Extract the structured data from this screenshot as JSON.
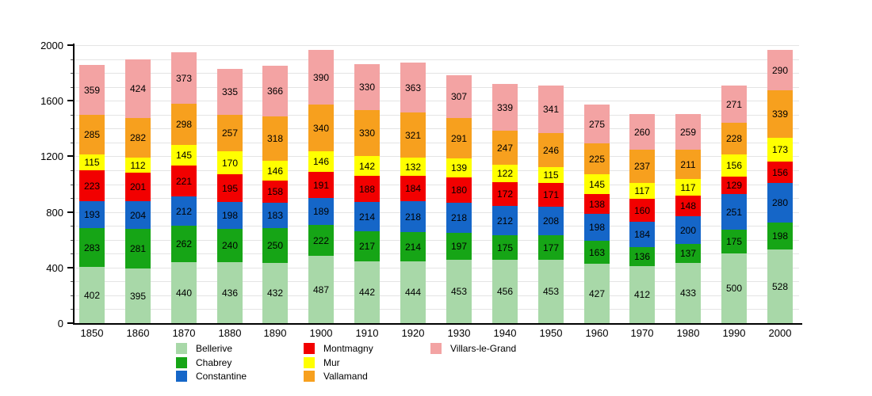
{
  "chart_data": {
    "type": "bar",
    "stacked": true,
    "title": "",
    "xlabel": "",
    "ylabel": "",
    "categories": [
      "1850",
      "1860",
      "1870",
      "1880",
      "1890",
      "1900",
      "1910",
      "1920",
      "1930",
      "1940",
      "1950",
      "1960",
      "1970",
      "1980",
      "1990",
      "2000"
    ],
    "series": [
      {
        "name": "Bellerive",
        "color": "#a8d8a8",
        "values": [
          402,
          395,
          440,
          436,
          432,
          487,
          442,
          444,
          453,
          456,
          453,
          427,
          412,
          433,
          500,
          528
        ]
      },
      {
        "name": "Chabrey",
        "color": "#16a516",
        "values": [
          283,
          281,
          262,
          240,
          250,
          222,
          217,
          214,
          197,
          175,
          177,
          163,
          136,
          137,
          175,
          198
        ]
      },
      {
        "name": "Constantine",
        "color": "#1566c8",
        "values": [
          193,
          204,
          212,
          198,
          183,
          189,
          214,
          218,
          218,
          212,
          208,
          198,
          184,
          200,
          251,
          280
        ]
      },
      {
        "name": "Montmagny",
        "color": "#f20000",
        "values": [
          223,
          201,
          221,
          195,
          158,
          191,
          188,
          184,
          180,
          172,
          171,
          138,
          160,
          148,
          129,
          156
        ]
      },
      {
        "name": "Mur",
        "color": "#ffff00",
        "values": [
          115,
          112,
          145,
          170,
          146,
          146,
          142,
          132,
          139,
          122,
          115,
          145,
          117,
          117,
          156,
          173
        ]
      },
      {
        "name": "Vallamand",
        "color": "#f7a01e",
        "values": [
          285,
          282,
          298,
          257,
          318,
          340,
          330,
          321,
          291,
          247,
          246,
          225,
          237,
          211,
          228,
          339
        ]
      },
      {
        "name": "Villars-le-Grand",
        "color": "#f3a3a3",
        "values": [
          359,
          424,
          373,
          335,
          366,
          390,
          330,
          363,
          307,
          339,
          341,
          275,
          260,
          259,
          271,
          290
        ]
      }
    ],
    "ylim": [
      0,
      2000
    ],
    "yticks": [
      0,
      400,
      800,
      1200,
      1600,
      2000
    ],
    "grid_interval": 100,
    "grid": "on",
    "legend_position": "bottom",
    "legend_columns": [
      [
        "Bellerive",
        "Chabrey",
        "Constantine"
      ],
      [
        "Montmagny",
        "Mur",
        "Vallamand"
      ],
      [
        "Villars-le-Grand"
      ]
    ]
  }
}
